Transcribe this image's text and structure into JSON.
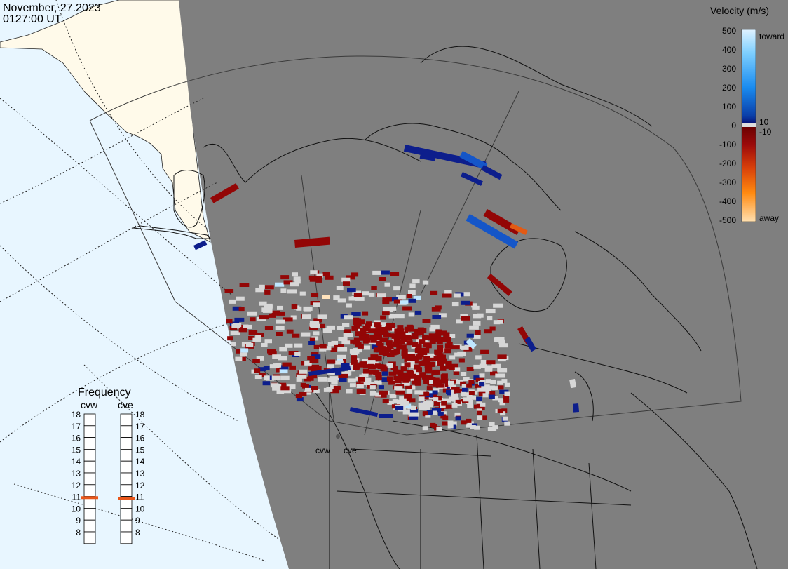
{
  "header": {
    "date": "November, 27.2023",
    "time": "0127:00 UT"
  },
  "legend": {
    "title": "Velocity (m/s)",
    "ticks": [
      "500",
      "400",
      "300",
      "200",
      "100",
      "0",
      "-100",
      "-200",
      "-300",
      "-400",
      "-500"
    ],
    "inner_plus": "10",
    "inner_minus": "-10",
    "toward_label": "toward",
    "away_label": "away"
  },
  "frequency": {
    "title": "Frequency",
    "radar_a": "cvw",
    "radar_b": "cve",
    "scale": [
      "18",
      "17",
      "16",
      "15",
      "14",
      "13",
      "12",
      "11",
      "10",
      "9",
      "8"
    ],
    "selected_mhz_a": 10.9,
    "selected_mhz_b": 10.8
  },
  "radar_sites": {
    "site_a": "cvw",
    "site_b": "cve"
  },
  "colors": {
    "night": "#7f7f7f",
    "ocean_day": "#e8f6ff",
    "land_day": "#fffaea",
    "ground_scatter": "#d7d7d7",
    "freq_marker": "#e8561a"
  }
}
